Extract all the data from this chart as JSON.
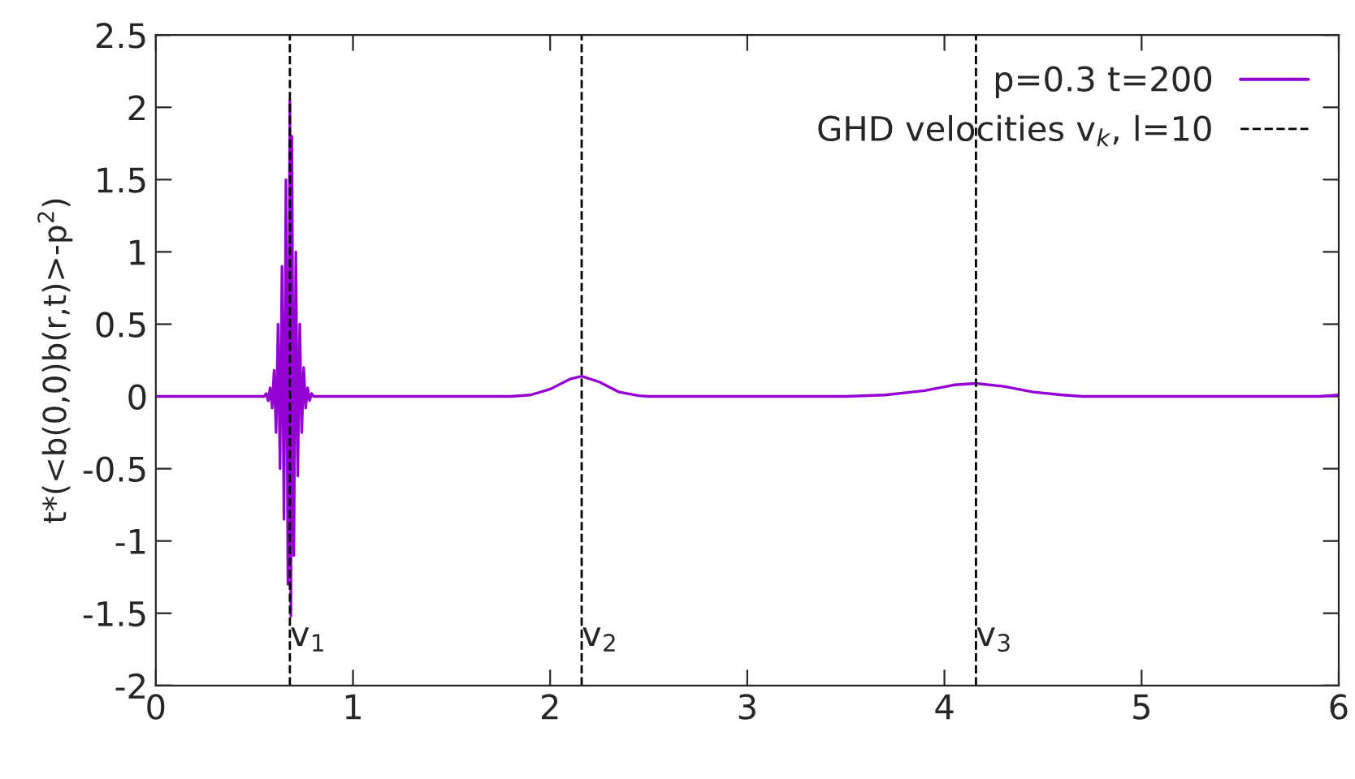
{
  "chart_data": {
    "type": "line",
    "ylabel": "t*(<b(0,0)b(r,t)>-p$^{2}$)",
    "xlim": [
      0,
      6
    ],
    "xticks": [
      0,
      1,
      2,
      3,
      4,
      5,
      6
    ],
    "ylim": [
      -2,
      2.5
    ],
    "yticks": [
      -2,
      -1.5,
      -1,
      -0.5,
      0,
      0.5,
      1,
      1.5,
      2,
      2.5
    ],
    "series": [
      {
        "name": "p=0.3 t=200",
        "color": "#9400d3",
        "x": [
          0,
          0.5,
          0.55,
          0.56,
          0.57,
          0.58,
          0.59,
          0.6,
          0.61,
          0.62,
          0.63,
          0.64,
          0.65,
          0.66,
          0.67,
          0.68,
          0.685,
          0.69,
          0.7,
          0.71,
          0.72,
          0.73,
          0.74,
          0.75,
          0.76,
          0.77,
          0.78,
          0.79,
          0.8,
          1.8,
          1.9,
          2.0,
          2.1,
          2.16,
          2.25,
          2.35,
          2.45,
          2.5,
          3.5,
          3.7,
          3.9,
          4.05,
          4.16,
          4.3,
          4.45,
          4.6,
          4.7,
          5.9,
          6.0
        ],
        "values": [
          0,
          0,
          0,
          0.02,
          -0.03,
          0.06,
          -0.08,
          0.18,
          -0.25,
          0.5,
          -0.5,
          0.9,
          -0.85,
          1.5,
          -1.3,
          2.05,
          -1.52,
          1.8,
          -1.1,
          1.0,
          -0.55,
          0.5,
          -0.25,
          0.2,
          -0.08,
          0.06,
          -0.03,
          0.02,
          0,
          0,
          0.01,
          0.05,
          0.12,
          0.14,
          0.1,
          0.03,
          0.005,
          0,
          0,
          0.01,
          0.04,
          0.08,
          0.09,
          0.07,
          0.03,
          0.01,
          0,
          0,
          0.01
        ]
      }
    ],
    "ref_lines": [
      {
        "axis": "x",
        "value": 0.68,
        "label": "v$_{1}$",
        "color": "#000000",
        "line_style": "dashed"
      },
      {
        "axis": "x",
        "value": 2.16,
        "label": "v$_{2}$",
        "color": "#000000",
        "line_style": "dashed"
      },
      {
        "axis": "x",
        "value": 4.16,
        "label": "v$_{3}$",
        "color": "#000000",
        "line_style": "dashed"
      }
    ],
    "annotations": [
      "GHD velocities v$_{k}$, l=10"
    ],
    "legend": "top right",
    "grid": false,
    "marker": "none",
    "line_style": "solid"
  }
}
